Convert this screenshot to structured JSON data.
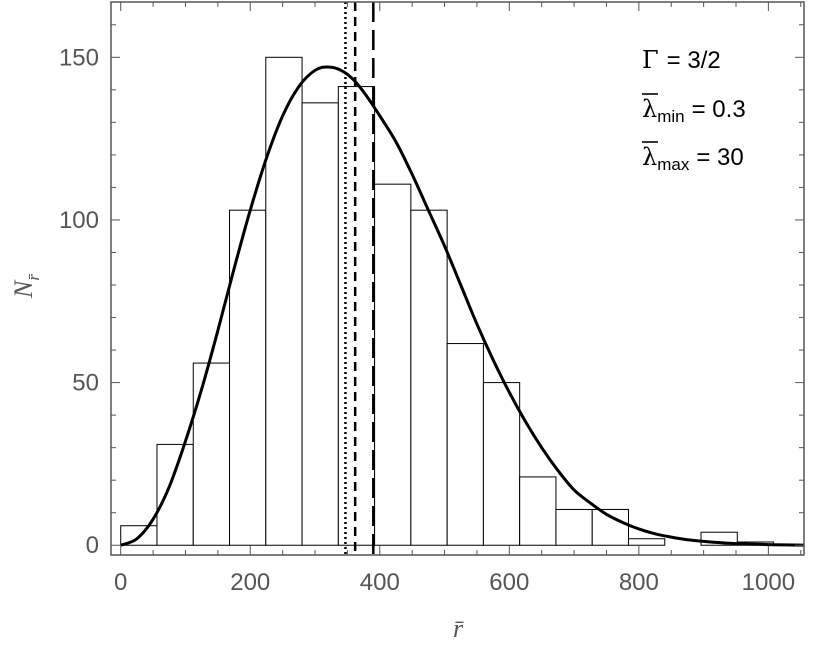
{
  "chart_data": {
    "type": "bar",
    "title": "",
    "xlabel": "r̄",
    "ylabel": "N",
    "ylabel_sub": "r̄",
    "xlim": [
      -15,
      1055
    ],
    "ylim": [
      -3,
      167
    ],
    "xticks": [
      0,
      200,
      400,
      600,
      800,
      1000
    ],
    "yticks": [
      0,
      50,
      100,
      150
    ],
    "bin_width": 56,
    "bins": [
      {
        "x0": 0,
        "x1": 56,
        "count": 6
      },
      {
        "x0": 56,
        "x1": 112,
        "count": 31
      },
      {
        "x0": 112,
        "x1": 168,
        "count": 56
      },
      {
        "x0": 168,
        "x1": 224,
        "count": 103
      },
      {
        "x0": 224,
        "x1": 280,
        "count": 150
      },
      {
        "x0": 280,
        "x1": 336,
        "count": 136
      },
      {
        "x0": 336,
        "x1": 392,
        "count": 141
      },
      {
        "x0": 392,
        "x1": 448,
        "count": 111
      },
      {
        "x0": 448,
        "x1": 504,
        "count": 103
      },
      {
        "x0": 504,
        "x1": 560,
        "count": 62
      },
      {
        "x0": 560,
        "x1": 616,
        "count": 50
      },
      {
        "x0": 616,
        "x1": 672,
        "count": 21
      },
      {
        "x0": 672,
        "x1": 728,
        "count": 11
      },
      {
        "x0": 728,
        "x1": 784,
        "count": 11
      },
      {
        "x0": 784,
        "x1": 840,
        "count": 2
      },
      {
        "x0": 840,
        "x1": 896,
        "count": 0
      },
      {
        "x0": 896,
        "x1": 952,
        "count": 4
      },
      {
        "x0": 952,
        "x1": 1008,
        "count": 1
      }
    ],
    "fit_curve": {
      "x": [
        0,
        25,
        50,
        75,
        100,
        125,
        150,
        175,
        200,
        225,
        250,
        275,
        300,
        320,
        340,
        360,
        380,
        400,
        425,
        450,
        475,
        500,
        525,
        550,
        575,
        600,
        625,
        650,
        675,
        700,
        725,
        750,
        775,
        800,
        825,
        850,
        875,
        900,
        925,
        950,
        975,
        1000,
        1025,
        1055
      ],
      "y": [
        0,
        2,
        8,
        18,
        32,
        48,
        66,
        85,
        103,
        119,
        132,
        141,
        146,
        147,
        146,
        143,
        138,
        132,
        124,
        114,
        103,
        92,
        80,
        68,
        57,
        47,
        38,
        30,
        23,
        17,
        13,
        9.5,
        7,
        5,
        3.5,
        2.5,
        1.7,
        1.2,
        0.8,
        0.5,
        0.35,
        0.2,
        0.1,
        0.05
      ]
    },
    "vertical_lines": [
      {
        "style": "dotted",
        "x": 347
      },
      {
        "style": "dashed",
        "x": 362
      },
      {
        "style": "long-dashed",
        "x": 390
      }
    ],
    "annotations": {
      "gamma": {
        "symbol": "Γ",
        "value": "= 3/2"
      },
      "lambda_min": {
        "symbol": "λ",
        "sub": "min",
        "value": "= 0.3"
      },
      "lambda_max": {
        "symbol": "λ",
        "sub": "max",
        "value": "= 30"
      }
    },
    "grid": false,
    "legend": "none"
  }
}
